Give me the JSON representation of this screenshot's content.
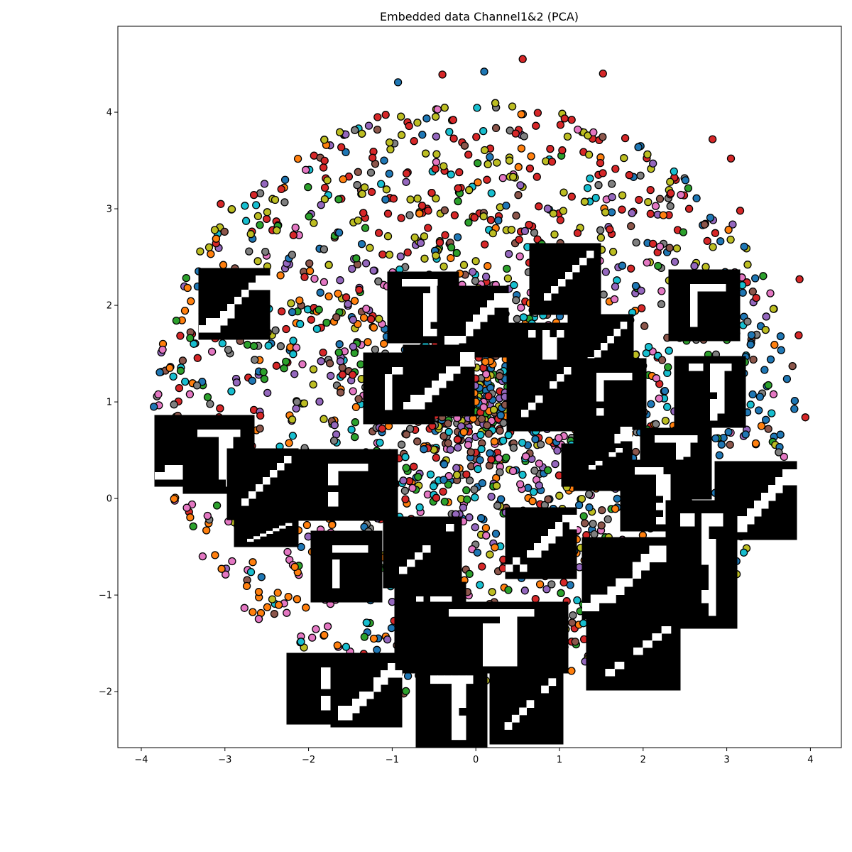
{
  "chart_data": {
    "type": "scatter",
    "title": "Embedded data Channel1&2 (PCA)",
    "xlabel": "",
    "ylabel": "",
    "xlim": [
      -4.28,
      4.37
    ],
    "ylim": [
      -2.58,
      4.89
    ],
    "xticks": [
      -4,
      -3,
      -2,
      -1,
      0,
      1,
      2,
      3,
      4
    ],
    "yticks": [
      -2,
      -1,
      0,
      1,
      2,
      3,
      4
    ],
    "tick_label_strings": {
      "x": [
        "−4",
        "−3",
        "−2",
        "−1",
        "0",
        "1",
        "2",
        "3",
        "4"
      ],
      "y": [
        "−2",
        "−1",
        "0",
        "1",
        "2",
        "3",
        "4"
      ]
    },
    "grid": false,
    "legend": "none",
    "marker": "circle with black edge",
    "series_colors": [
      "#1f77b4",
      "#ff7f0e",
      "#2ca02c",
      "#d62728",
      "#9467bd",
      "#8c564b",
      "#e377c2",
      "#7f7f7f",
      "#bcbd22",
      "#17becf"
    ],
    "point_cloud": {
      "shape": "disk",
      "center": [
        0.0,
        1.0
      ],
      "radius": 3.1,
      "approx_extent": {
        "x": [
          -3.9,
          3.9
        ],
        "y": [
          -2.2,
          4.6
        ]
      }
    },
    "highlighted_points": [
      {
        "x": 0.56,
        "y": 4.55,
        "series": 3
      },
      {
        "x": -0.4,
        "y": 4.39,
        "series": 3
      },
      {
        "x": 1.52,
        "y": 4.4,
        "series": 3
      },
      {
        "x": 0.1,
        "y": 4.42,
        "series": 0
      },
      {
        "x": -0.93,
        "y": 4.31,
        "series": 0
      },
      {
        "x": 2.83,
        "y": 3.72,
        "series": 3
      },
      {
        "x": 3.87,
        "y": 2.27,
        "series": 3
      },
      {
        "x": 3.94,
        "y": 0.84,
        "series": 3
      },
      {
        "x": -3.85,
        "y": 0.95,
        "series": 0
      },
      {
        "x": 3.86,
        "y": 1.69,
        "series": 3
      },
      {
        "x": 3.16,
        "y": 2.98,
        "series": 3
      },
      {
        "x": -2.28,
        "y": 3.3,
        "series": 0
      },
      {
        "x": -3.05,
        "y": 3.05,
        "series": 3
      },
      {
        "x": 3.05,
        "y": 3.52,
        "series": 3
      }
    ],
    "image_thumbnails": {
      "count": 30,
      "style": "black-and-white handwritten digit image patches overlaid on scatter"
    }
  }
}
